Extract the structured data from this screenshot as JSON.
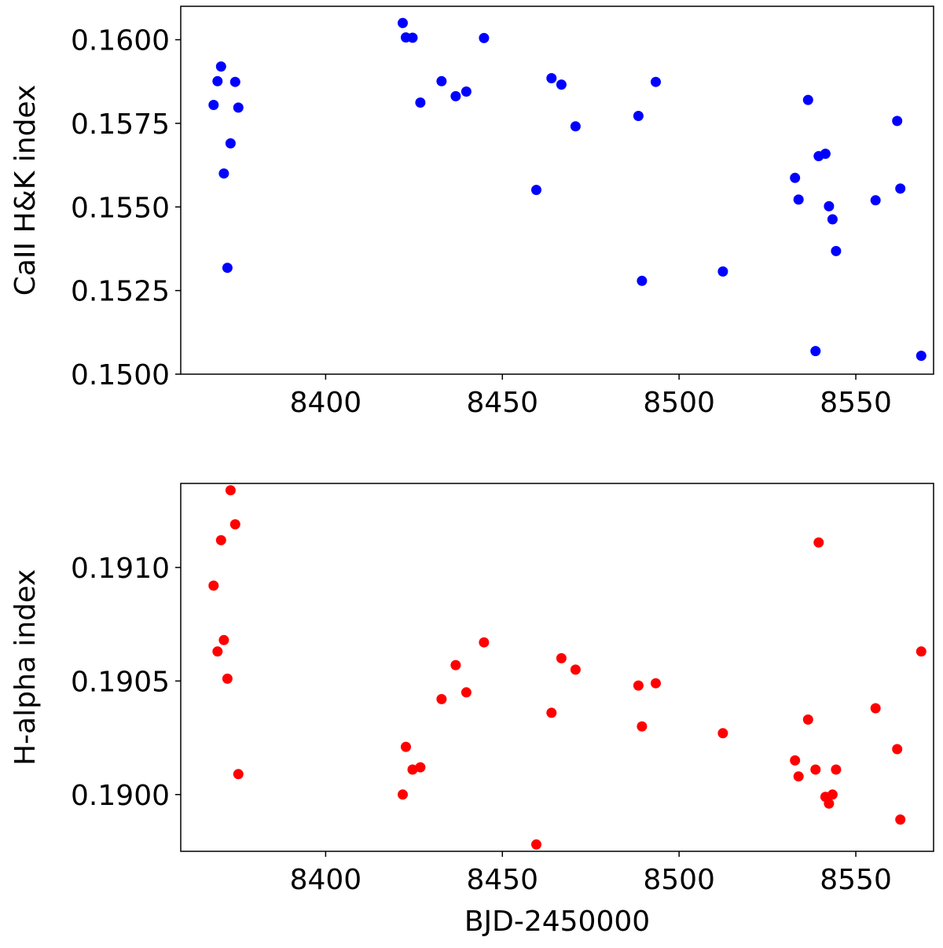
{
  "chart_data": [
    {
      "type": "scatter",
      "ylabel": "CaII H&K index",
      "xlabel": "",
      "xlim": [
        8359,
        8572
      ],
      "ylim": [
        0.15,
        0.161
      ],
      "xticks": [
        8400,
        8450,
        8500,
        8550
      ],
      "xtick_labels": [
        "8400",
        "8450",
        "8500",
        "8550"
      ],
      "yticks": [
        0.15,
        0.1525,
        0.155,
        0.1575,
        0.16
      ],
      "ytick_labels": [
        "0.1500",
        "0.1525",
        "0.1550",
        "0.1575",
        "0.1600"
      ],
      "grid": false,
      "marker_color": "#0000ff",
      "x": [
        8368.3,
        8369.4,
        8370.4,
        8371.2,
        8372.2,
        8373.1,
        8374.4,
        8375.3,
        8421.8,
        8422.7,
        8424.6,
        8426.8,
        8432.8,
        8436.8,
        8439.8,
        8444.8,
        8459.6,
        8463.9,
        8466.7,
        8470.7,
        8488.5,
        8489.5,
        8493.4,
        8512.4,
        8532.8,
        8533.8,
        8536.5,
        8538.6,
        8539.5,
        8541.4,
        8542.4,
        8543.4,
        8544.4,
        8555.6,
        8561.7,
        8562.6,
        8568.5
      ],
      "y": [
        0.15805,
        0.15876,
        0.1592,
        0.156,
        0.15318,
        0.1569,
        0.15874,
        0.15797,
        0.1605,
        0.16007,
        0.16006,
        0.15812,
        0.15876,
        0.15831,
        0.15845,
        0.16005,
        0.15551,
        0.15885,
        0.15866,
        0.15741,
        0.15772,
        0.15279,
        0.15874,
        0.15307,
        0.15587,
        0.15522,
        0.1582,
        0.15069,
        0.15652,
        0.15659,
        0.15502,
        0.15463,
        0.15368,
        0.1552,
        0.15757,
        0.15555,
        0.15055
      ]
    },
    {
      "type": "scatter",
      "ylabel": "H-alpha index",
      "xlabel": "BJD-2450000",
      "xlim": [
        8359,
        8572
      ],
      "ylim": [
        0.18975,
        0.19137
      ],
      "xticks": [
        8400,
        8450,
        8500,
        8550
      ],
      "xtick_labels": [
        "8400",
        "8450",
        "8500",
        "8550"
      ],
      "yticks": [
        0.19,
        0.1905,
        0.191
      ],
      "ytick_labels": [
        "0.1900",
        "0.1905",
        "0.1910"
      ],
      "grid": false,
      "marker_color": "#ff0000",
      "x": [
        8368.3,
        8369.4,
        8370.4,
        8371.2,
        8372.2,
        8373.1,
        8374.4,
        8375.3,
        8421.8,
        8422.7,
        8424.6,
        8426.8,
        8432.8,
        8436.8,
        8439.8,
        8444.8,
        8459.6,
        8463.9,
        8466.7,
        8470.7,
        8488.5,
        8489.5,
        8493.4,
        8512.4,
        8532.8,
        8533.8,
        8536.5,
        8538.6,
        8539.5,
        8541.4,
        8542.4,
        8543.4,
        8544.4,
        8555.6,
        8561.7,
        8562.6,
        8568.5
      ],
      "y": [
        0.19092,
        0.19063,
        0.19112,
        0.19068,
        0.19051,
        0.19134,
        0.19119,
        0.19009,
        0.19,
        0.19021,
        0.19011,
        0.19012,
        0.19042,
        0.19057,
        0.19045,
        0.19067,
        0.18978,
        0.19036,
        0.1906,
        0.19055,
        0.19048,
        0.1903,
        0.19049,
        0.19027,
        0.19015,
        0.19008,
        0.19033,
        0.19011,
        0.19111,
        0.18999,
        0.18996,
        0.19,
        0.19011,
        0.19038,
        0.1902,
        0.18989,
        0.19063
      ]
    }
  ]
}
